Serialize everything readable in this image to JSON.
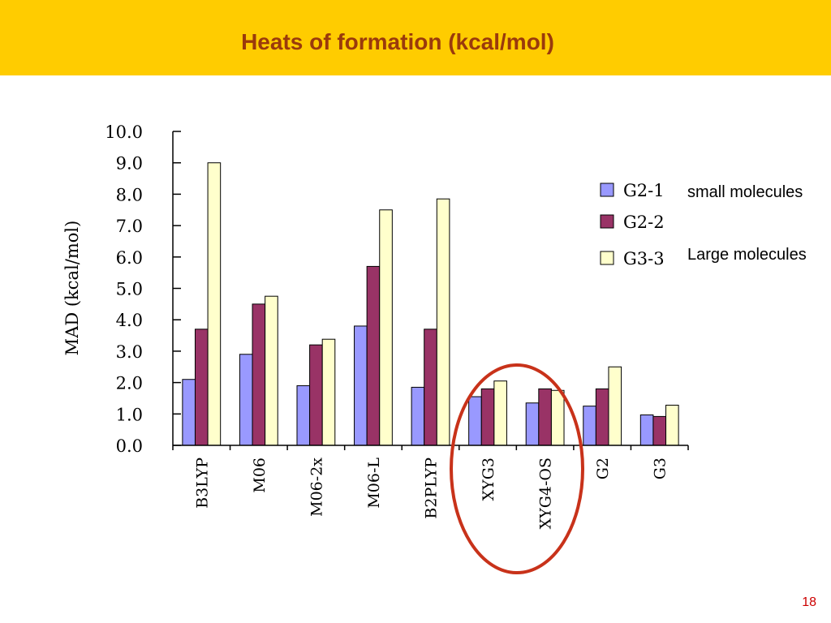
{
  "slide": {
    "title": "Heats of formation (kcal/mol)",
    "page_number": "18"
  },
  "colors": {
    "header": "#ffcc00",
    "title": "#9a3a0c",
    "highlight_ellipse": "#c8321a",
    "page_number": "#cc0000"
  },
  "chart_data": {
    "type": "bar",
    "ylabel": "MAD (kcal/mol)",
    "ylim": [
      0,
      10
    ],
    "yticks": [
      "0.0",
      "1.0",
      "2.0",
      "3.0",
      "4.0",
      "5.0",
      "6.0",
      "7.0",
      "8.0",
      "9.0",
      "10.0"
    ],
    "categories": [
      "B3LYP",
      "M06",
      "M06-2x",
      "M06-L",
      "B2PLYP",
      "XYG3",
      "XYG4-OS",
      "G2",
      "G3"
    ],
    "series": [
      {
        "name": "G2-1",
        "color": "#9999ff",
        "values": [
          2.1,
          2.9,
          1.9,
          3.8,
          1.85,
          1.55,
          1.35,
          1.25,
          0.97
        ]
      },
      {
        "name": "G2-2",
        "color": "#993366",
        "values": [
          3.7,
          4.5,
          3.2,
          5.7,
          3.7,
          1.8,
          1.8,
          1.8,
          0.92
        ]
      },
      {
        "name": "G3-3",
        "color": "#ffffcc",
        "values": [
          9.0,
          4.75,
          3.38,
          7.5,
          7.85,
          2.05,
          1.75,
          2.5,
          1.28
        ]
      }
    ],
    "legend_position": "right",
    "annotations": [
      "small molecules",
      "Large molecules"
    ],
    "highlighted_categories": [
      "XYG3",
      "XYG4-OS"
    ]
  }
}
